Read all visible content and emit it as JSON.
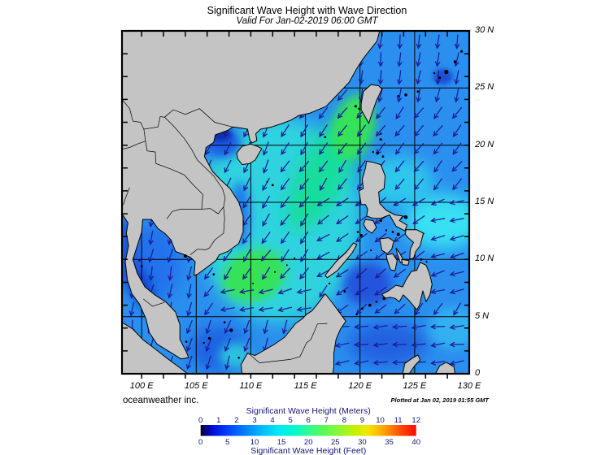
{
  "title": "Significant Wave Height with Wave Direction",
  "subtitle": "Valid For Jan-02-2019 06:00 GMT",
  "credit_left": "oceanweather inc.",
  "credit_right": "Plotted at Jan 02, 2019 01:55 GMT",
  "map": {
    "extent": {
      "lon_min": 98.2,
      "lon_max": 130,
      "lat_min": 0,
      "lat_max": 30
    },
    "lat_labels": [
      "30 N",
      "25 N",
      "20 N",
      "15 N",
      "10 N",
      "5 N",
      "0"
    ],
    "lat_values": [
      30,
      25,
      20,
      15,
      10,
      5,
      0
    ],
    "lon_labels": [
      "100 E",
      "105 E",
      "110 E",
      "115 E",
      "120 E",
      "125 E",
      "130 E"
    ],
    "lon_values": [
      100,
      105,
      110,
      115,
      120,
      125,
      130
    ],
    "grid_step_deg": 5,
    "tick_step_deg": 2,
    "land_color": "#c4c4c4",
    "coast_color": "#000000",
    "border_color": "#000000",
    "grid_color": "#000000",
    "frame_color": "#000000",
    "sea_base_color": "#2a8fee",
    "arrow_color": "#1c1c96",
    "arrow_direction_note": "northeast monsoon: arrows point S to SW over South China Sea, W east of Philippines"
  },
  "colorbar": {
    "title_meters": "Significant Wave Height (Meters)",
    "title_feet": "Significant Wave Height (Feet)",
    "meters_ticks": [
      0,
      1,
      2,
      3,
      4,
      5,
      6,
      7,
      8,
      9,
      10,
      11,
      12
    ],
    "feet_ticks": [
      0,
      5,
      10,
      15,
      20,
      25,
      30,
      35,
      40
    ],
    "text_color": "#15157d",
    "stops": [
      {
        "at": 0.0,
        "color": "#000000"
      },
      {
        "at": 0.02,
        "color": "#00007d"
      },
      {
        "at": 0.06,
        "color": "#0010e0"
      },
      {
        "at": 0.125,
        "color": "#0040ff"
      },
      {
        "at": 0.208,
        "color": "#0080ff"
      },
      {
        "at": 0.292,
        "color": "#00c0ff"
      },
      {
        "at": 0.36,
        "color": "#00e8f8"
      },
      {
        "at": 0.43,
        "color": "#00f8d0"
      },
      {
        "at": 0.5,
        "color": "#30fc96"
      },
      {
        "at": 0.57,
        "color": "#58fa58"
      },
      {
        "at": 0.65,
        "color": "#90f830"
      },
      {
        "at": 0.72,
        "color": "#c8f000"
      },
      {
        "at": 0.77,
        "color": "#f0e800"
      },
      {
        "at": 0.82,
        "color": "#ffc000"
      },
      {
        "at": 0.875,
        "color": "#ff8800"
      },
      {
        "at": 0.93,
        "color": "#ff4800"
      },
      {
        "at": 1.0,
        "color": "#ff0800"
      }
    ]
  }
}
